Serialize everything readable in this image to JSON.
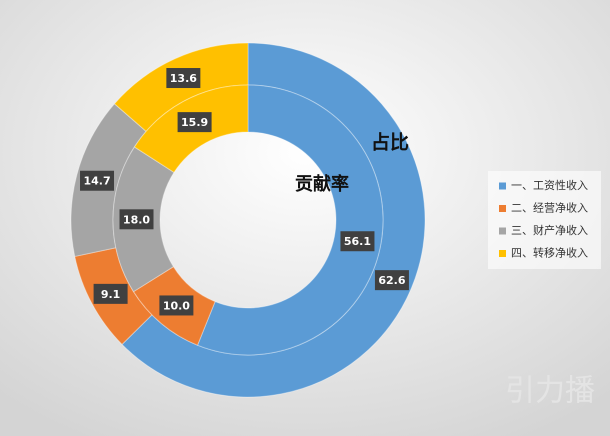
{
  "chart_data": {
    "type": "donut",
    "categories": [
      "一、工资性收入",
      "二、经营净收入",
      "三、财产净收入",
      "四、转移净收入"
    ],
    "colors": [
      "#5b9bd5",
      "#ed7d31",
      "#a5a5a5",
      "#ffc000"
    ],
    "series": [
      {
        "name": "占比",
        "values": [
          62.6,
          9.1,
          14.7,
          13.6
        ]
      },
      {
        "name": "贡献率",
        "values": [
          56.1,
          10.0,
          18.0,
          15.9
        ],
        "value_labels": [
          "56.1",
          "10.0",
          "18.0",
          "15.9"
        ]
      }
    ],
    "legend": "right"
  },
  "watermark": "引力播"
}
